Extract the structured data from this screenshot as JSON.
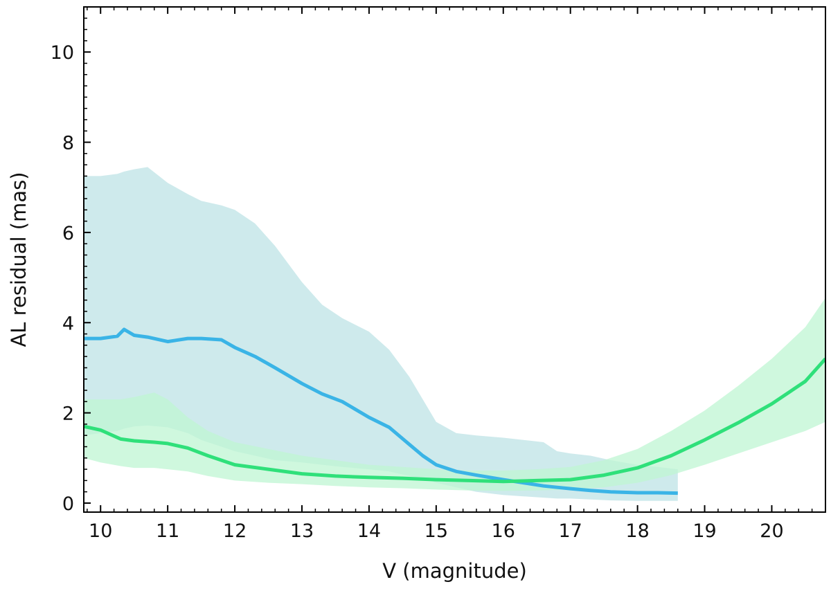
{
  "chart_data": {
    "type": "line",
    "title": "",
    "xlabel": "V (magnitude)",
    "ylabel": "AL residual (mas)",
    "xlim": [
      9.75,
      20.8
    ],
    "ylim": [
      -0.2,
      11.0
    ],
    "xticks": [
      10,
      11,
      12,
      13,
      14,
      15,
      16,
      17,
      18,
      19,
      20
    ],
    "yticks": [
      0,
      2,
      4,
      6,
      8,
      10
    ],
    "grid": false,
    "legend": "none",
    "colors": {
      "blue_line": "#3ab4e6",
      "blue_band": "#c9e8ea",
      "green_line": "#2fe07a",
      "green_band": "#bff5d3",
      "axes": "#000000"
    },
    "series": [
      {
        "name": "blue",
        "x": [
          9.75,
          10.0,
          10.25,
          10.35,
          10.5,
          10.7,
          11.0,
          11.3,
          11.5,
          11.8,
          12.0,
          12.3,
          12.6,
          13.0,
          13.3,
          13.6,
          14.0,
          14.3,
          14.6,
          14.8,
          15.0,
          15.3,
          15.6,
          16.0,
          16.3,
          16.6,
          16.8,
          17.0,
          17.3,
          17.6,
          18.0,
          18.3,
          18.6
        ],
        "values": [
          3.65,
          3.65,
          3.7,
          3.85,
          3.72,
          3.68,
          3.58,
          3.65,
          3.65,
          3.62,
          3.45,
          3.25,
          3.0,
          2.65,
          2.42,
          2.25,
          1.9,
          1.68,
          1.3,
          1.05,
          0.85,
          0.7,
          0.62,
          0.52,
          0.45,
          0.38,
          0.35,
          0.32,
          0.28,
          0.25,
          0.23,
          0.23,
          0.22
        ],
        "band_upper": [
          7.25,
          7.25,
          7.3,
          7.35,
          7.4,
          7.45,
          7.1,
          6.85,
          6.7,
          6.6,
          6.5,
          6.2,
          5.7,
          4.9,
          4.4,
          4.1,
          3.8,
          3.4,
          2.8,
          2.3,
          1.8,
          1.55,
          1.5,
          1.45,
          1.4,
          1.35,
          1.15,
          1.1,
          1.05,
          0.95,
          0.85,
          0.8,
          0.75
        ],
        "band_lower": [
          1.5,
          1.55,
          1.6,
          1.65,
          1.7,
          1.72,
          1.68,
          1.55,
          1.4,
          1.25,
          1.15,
          1.05,
          0.95,
          0.9,
          0.85,
          0.8,
          0.75,
          0.7,
          0.6,
          0.55,
          0.45,
          0.35,
          0.25,
          0.18,
          0.15,
          0.12,
          0.1,
          0.1,
          0.08,
          0.06,
          0.05,
          0.05,
          0.05
        ]
      },
      {
        "name": "green",
        "x": [
          9.75,
          10.0,
          10.3,
          10.5,
          10.8,
          11.0,
          11.3,
          11.6,
          12.0,
          12.5,
          13.0,
          13.5,
          14.0,
          14.5,
          15.0,
          15.5,
          16.0,
          16.5,
          17.0,
          17.5,
          18.0,
          18.5,
          19.0,
          19.5,
          20.0,
          20.5,
          20.8
        ],
        "values": [
          1.7,
          1.62,
          1.42,
          1.38,
          1.35,
          1.32,
          1.22,
          1.05,
          0.85,
          0.75,
          0.65,
          0.6,
          0.57,
          0.55,
          0.52,
          0.5,
          0.48,
          0.5,
          0.52,
          0.62,
          0.78,
          1.05,
          1.4,
          1.78,
          2.2,
          2.7,
          3.2
        ],
        "band_upper": [
          2.3,
          2.3,
          2.3,
          2.35,
          2.45,
          2.3,
          1.9,
          1.6,
          1.35,
          1.2,
          1.05,
          0.95,
          0.85,
          0.8,
          0.75,
          0.72,
          0.72,
          0.75,
          0.8,
          0.95,
          1.2,
          1.6,
          2.05,
          2.6,
          3.2,
          3.9,
          4.55
        ],
        "band_lower": [
          1.0,
          0.9,
          0.82,
          0.78,
          0.78,
          0.75,
          0.7,
          0.6,
          0.5,
          0.45,
          0.42,
          0.38,
          0.35,
          0.33,
          0.3,
          0.28,
          0.27,
          0.28,
          0.3,
          0.35,
          0.45,
          0.62,
          0.85,
          1.1,
          1.35,
          1.6,
          1.8
        ]
      }
    ]
  }
}
